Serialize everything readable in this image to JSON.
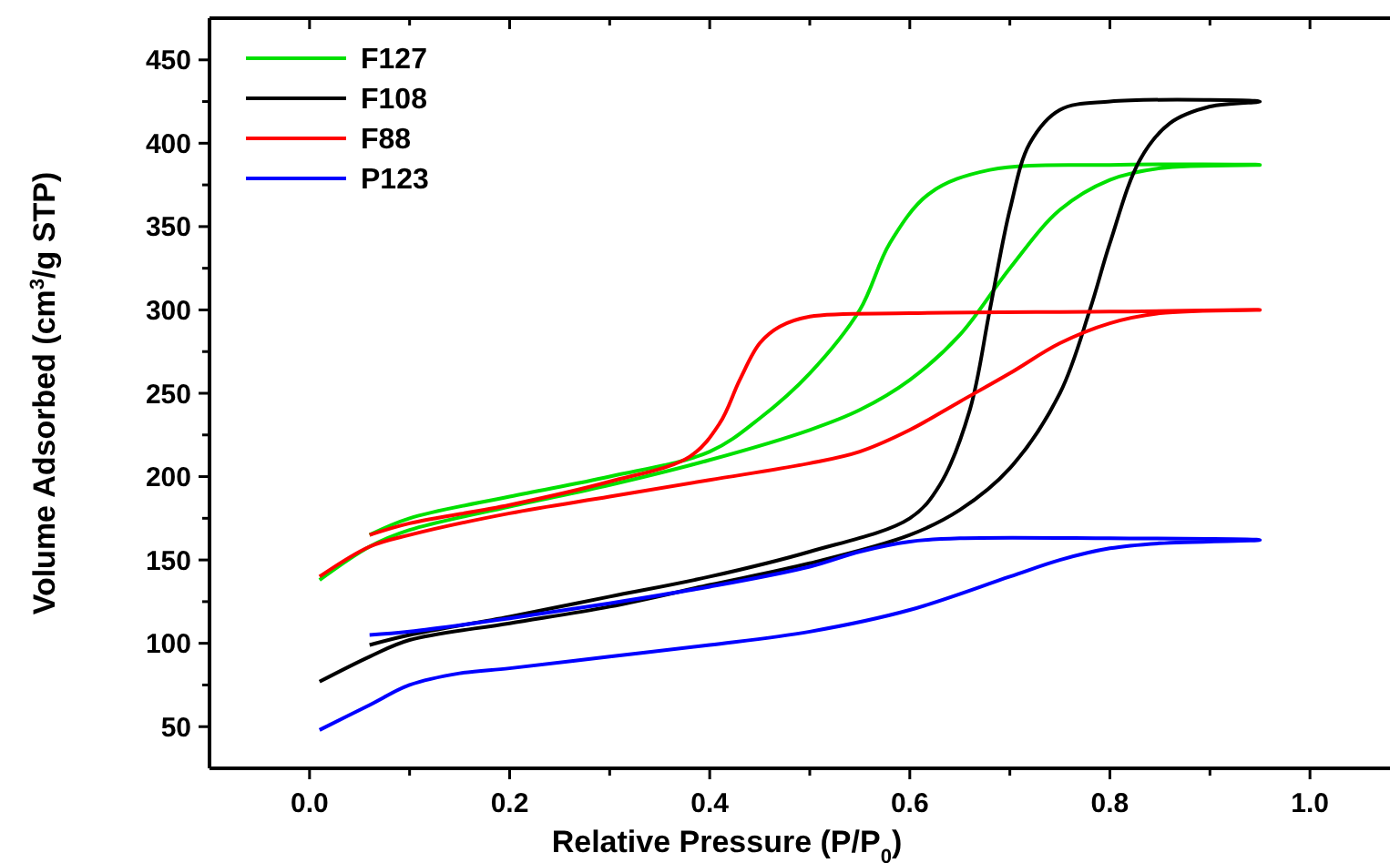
{
  "chart_data": {
    "type": "line",
    "xlabel": "Relative Pressure  (P/P$_{0}$)",
    "ylabel": "Volume Adsorbed  (cm$^{3}$/g STP)",
    "xlim": [
      -0.1,
      1.08
    ],
    "ylim": [
      25,
      475
    ],
    "xticks": [
      {
        "value": 0,
        "label": "0.0"
      },
      {
        "value": 0.1,
        "label": null
      },
      {
        "value": 0.2,
        "label": "0.2"
      },
      {
        "value": 0.3,
        "label": null
      },
      {
        "value": 0.4,
        "label": "0.4"
      },
      {
        "value": 0.5,
        "label": null
      },
      {
        "value": 0.6,
        "label": "0.6"
      },
      {
        "value": 0.7,
        "label": null
      },
      {
        "value": 0.8,
        "label": "0.8"
      },
      {
        "value": 0.9,
        "label": null
      },
      {
        "value": 1,
        "label": "1.0"
      }
    ],
    "yticks": [
      50,
      {
        "value": 75,
        "label": null
      },
      100,
      {
        "value": 125,
        "label": null
      },
      150,
      {
        "value": 175,
        "label": null
      },
      200,
      {
        "value": 225,
        "label": null
      },
      250,
      {
        "value": 275,
        "label": null
      },
      300,
      {
        "value": 325,
        "label": null
      },
      350,
      {
        "value": 375,
        "label": null
      },
      400,
      {
        "value": 425,
        "label": null
      },
      450
    ],
    "grid": false,
    "legend": "top left",
    "marker": "none",
    "line_style": "solid",
    "series": [
      {
        "name": "F127",
        "color": "#00e000",
        "x": [
          0.01,
          0.06,
          0.1,
          0.2,
          0.3,
          0.4,
          0.5,
          0.55,
          0.6,
          0.65,
          0.7,
          0.75,
          0.8,
          0.85,
          0.95,
          0.8,
          0.68,
          0.62,
          0.58,
          0.55,
          0.5,
          0.45,
          0.4,
          0.3,
          0.2,
          0.1,
          0.06
        ],
        "values": [
          138,
          158,
          168,
          182,
          195,
          210,
          228,
          240,
          258,
          285,
          325,
          360,
          378,
          385,
          387,
          387,
          384,
          370,
          340,
          300,
          262,
          235,
          215,
          200,
          188,
          175,
          165
        ]
      },
      {
        "name": "F108",
        "color": "#000000",
        "x": [
          0.01,
          0.06,
          0.1,
          0.2,
          0.3,
          0.4,
          0.5,
          0.6,
          0.65,
          0.7,
          0.75,
          0.78,
          0.8,
          0.83,
          0.86,
          0.9,
          0.95,
          0.9,
          0.8,
          0.75,
          0.72,
          0.7,
          0.68,
          0.66,
          0.63,
          0.6,
          0.5,
          0.4,
          0.3,
          0.2,
          0.1,
          0.06
        ],
        "values": [
          77,
          92,
          102,
          112,
          122,
          135,
          148,
          165,
          180,
          205,
          250,
          300,
          340,
          390,
          412,
          422,
          425,
          426,
          425,
          420,
          400,
          360,
          300,
          240,
          195,
          175,
          155,
          140,
          128,
          116,
          105,
          99
        ]
      },
      {
        "name": "F88",
        "color": "#ff0000",
        "x": [
          0.01,
          0.06,
          0.1,
          0.2,
          0.3,
          0.4,
          0.5,
          0.55,
          0.6,
          0.65,
          0.7,
          0.75,
          0.8,
          0.85,
          0.95,
          0.8,
          0.6,
          0.5,
          0.47,
          0.45,
          0.43,
          0.41,
          0.38,
          0.3,
          0.2,
          0.1,
          0.06
        ],
        "values": [
          140,
          158,
          165,
          178,
          188,
          198,
          208,
          215,
          228,
          245,
          262,
          280,
          292,
          298,
          300,
          299,
          298,
          296,
          290,
          280,
          258,
          232,
          212,
          197,
          183,
          172,
          165
        ]
      },
      {
        "name": "P123",
        "color": "#0000ff",
        "x": [
          0.01,
          0.06,
          0.1,
          0.15,
          0.2,
          0.3,
          0.4,
          0.5,
          0.6,
          0.7,
          0.75,
          0.8,
          0.85,
          0.95,
          0.8,
          0.65,
          0.6,
          0.55,
          0.5,
          0.4,
          0.3,
          0.2,
          0.1,
          0.06
        ],
        "values": [
          48,
          63,
          75,
          82,
          85,
          92,
          99,
          107,
          120,
          140,
          150,
          157,
          160,
          162,
          163,
          163,
          161,
          155,
          146,
          134,
          124,
          115,
          107,
          105
        ]
      }
    ]
  }
}
